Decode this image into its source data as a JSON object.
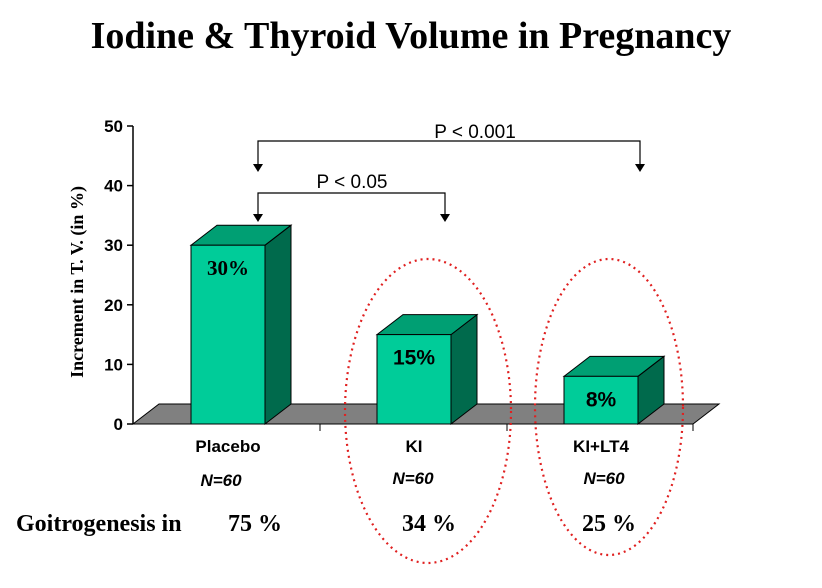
{
  "chart_data": {
    "type": "bar",
    "title": "Iodine & Thyroid Volume in Pregnancy",
    "ylabel": "Increment in T. V. (in %)",
    "xlabel": "",
    "ylim": [
      0,
      50
    ],
    "yticks": [
      0,
      10,
      20,
      30,
      40,
      50
    ],
    "categories": [
      "Placebo",
      "KI",
      "KI+LT4"
    ],
    "values": [
      30,
      15,
      8
    ],
    "data_labels": [
      "30%",
      "15%",
      "8%"
    ],
    "n_labels": [
      "N=60",
      "N=60",
      "N=60"
    ],
    "annotations": {
      "p_small": "P < 0.05",
      "p_large": "P < 0.001"
    },
    "goitrogenesis": {
      "label": "Goitrogenesis in",
      "values": [
        "75 %",
        "34 %",
        "25 %"
      ]
    },
    "colors": {
      "bar_front": "#00cc99",
      "bar_top": "#009f73",
      "bar_side": "#006a4c",
      "floor": "#808080",
      "circle": "#e02020"
    }
  }
}
